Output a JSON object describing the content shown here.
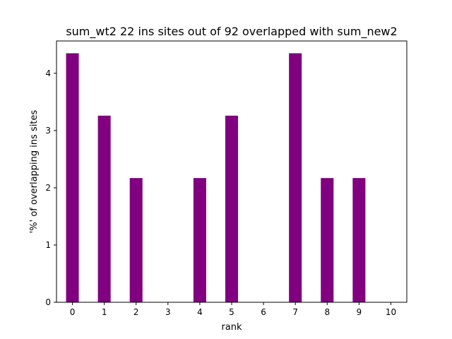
{
  "chart_data": {
    "type": "bar",
    "title": "sum_wt2 22 ins sites out of 92 overlapped with sum_new2",
    "xlabel": "rank",
    "ylabel": "'%' of overlapping ins sites",
    "x": [
      0,
      1,
      2,
      3,
      4,
      5,
      6,
      7,
      8,
      9,
      10
    ],
    "values": [
      4.35,
      3.26,
      2.17,
      0,
      2.17,
      3.26,
      0,
      4.35,
      2.17,
      2.17,
      0
    ],
    "xlim": [
      -0.5,
      10.5
    ],
    "ylim": [
      0,
      4.565
    ],
    "yticks": [
      0,
      1,
      2,
      3,
      4
    ],
    "grid": false,
    "bar_color": "#800080"
  }
}
